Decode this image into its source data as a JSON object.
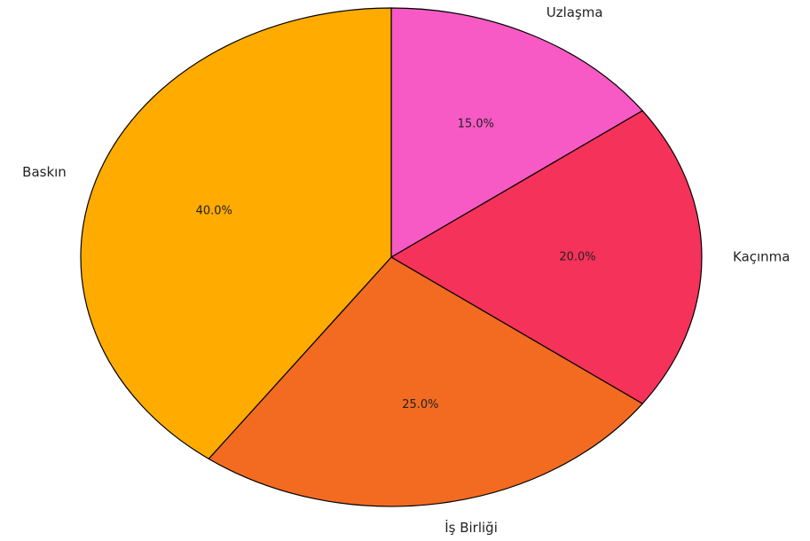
{
  "chart_data": {
    "type": "pie",
    "categories": [
      "Uzlaşma",
      "Kaçınma",
      "İş Birliği",
      "Baskın"
    ],
    "values": [
      15,
      20,
      25,
      40
    ],
    "value_labels": [
      "15.0%",
      "20.0%",
      "25.0%",
      "40.0%"
    ],
    "colors": [
      "#f75ac4",
      "#f5325a",
      "#f26b21",
      "#ffab00"
    ]
  }
}
